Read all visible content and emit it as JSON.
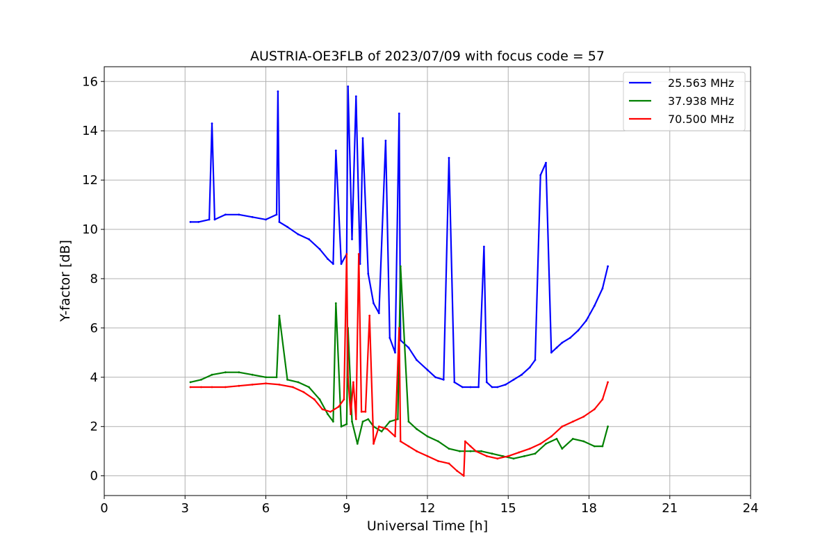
{
  "chart_data": {
    "type": "line",
    "title": "AUSTRIA-OE3FLB of 2023/07/09 with focus code = 57",
    "xlabel": "Universal Time [h]",
    "ylabel": "Y-factor [dB]",
    "xlim": [
      0,
      24
    ],
    "ylim": [
      -0.8,
      16.6
    ],
    "xticks": [
      "0",
      "3",
      "6",
      "9",
      "12",
      "15",
      "18",
      "21",
      "24"
    ],
    "yticks": [
      "0",
      "2",
      "4",
      "6",
      "8",
      "10",
      "12",
      "14",
      "16"
    ],
    "grid": true,
    "legend_position": "top-right",
    "series": [
      {
        "name": "25.563 MHz",
        "color": "#0000ff",
        "x": [
          3.2,
          3.5,
          3.9,
          4.0,
          4.1,
          4.5,
          5.0,
          5.5,
          6.0,
          6.4,
          6.45,
          6.5,
          6.8,
          7.2,
          7.6,
          8.0,
          8.3,
          8.5,
          8.6,
          8.8,
          9.0,
          9.05,
          9.2,
          9.35,
          9.5,
          9.6,
          9.8,
          10.0,
          10.2,
          10.45,
          10.6,
          10.8,
          10.95,
          11.0,
          11.3,
          11.6,
          12.0,
          12.3,
          12.6,
          12.8,
          13.0,
          13.3,
          13.6,
          13.9,
          14.1,
          14.2,
          14.4,
          14.6,
          14.9,
          15.2,
          15.5,
          15.8,
          16.0,
          16.2,
          16.4,
          16.6,
          16.8,
          17.0,
          17.3,
          17.6,
          17.9,
          18.2,
          18.5,
          18.7
        ],
        "values": [
          10.3,
          10.3,
          10.4,
          14.3,
          10.4,
          10.6,
          10.6,
          10.5,
          10.4,
          10.6,
          15.6,
          10.3,
          10.1,
          9.8,
          9.6,
          9.2,
          8.8,
          8.6,
          13.2,
          8.6,
          9.0,
          15.8,
          9.6,
          15.4,
          8.6,
          13.7,
          8.2,
          7.0,
          6.6,
          13.6,
          5.6,
          5.0,
          14.7,
          5.5,
          5.2,
          4.7,
          4.3,
          4.0,
          3.9,
          12.9,
          3.8,
          3.6,
          3.6,
          3.6,
          9.3,
          3.8,
          3.6,
          3.6,
          3.7,
          3.9,
          4.1,
          4.4,
          4.7,
          12.2,
          12.7,
          5.0,
          5.2,
          5.4,
          5.6,
          5.9,
          6.3,
          6.9,
          7.6,
          8.5
        ]
      },
      {
        "name": "37.938 MHz",
        "color": "#008000",
        "x": [
          3.2,
          3.6,
          4.0,
          4.5,
          5.0,
          5.5,
          6.0,
          6.4,
          6.5,
          6.8,
          7.2,
          7.6,
          8.0,
          8.3,
          8.5,
          8.6,
          8.8,
          9.0,
          9.05,
          9.2,
          9.4,
          9.6,
          9.8,
          10.0,
          10.3,
          10.6,
          10.9,
          11.0,
          11.3,
          11.6,
          12.0,
          12.4,
          12.8,
          13.2,
          13.6,
          14.0,
          14.4,
          14.8,
          15.2,
          15.6,
          16.0,
          16.4,
          16.8,
          17.0,
          17.4,
          17.8,
          18.2,
          18.5,
          18.7
        ],
        "values": [
          3.8,
          3.9,
          4.1,
          4.2,
          4.2,
          4.1,
          4.0,
          4.0,
          6.5,
          3.9,
          3.8,
          3.6,
          3.1,
          2.5,
          2.2,
          7.0,
          2.0,
          2.1,
          6.0,
          2.2,
          1.3,
          2.2,
          2.3,
          2.0,
          1.8,
          2.2,
          2.3,
          8.5,
          2.2,
          1.9,
          1.6,
          1.4,
          1.1,
          1.0,
          1.0,
          1.0,
          0.9,
          0.8,
          0.7,
          0.8,
          0.9,
          1.3,
          1.5,
          1.1,
          1.5,
          1.4,
          1.2,
          1.2,
          2.0
        ]
      },
      {
        "name": "70.500 MHz",
        "color": "#ff0000",
        "x": [
          3.2,
          3.6,
          4.0,
          4.5,
          5.0,
          5.5,
          6.0,
          6.5,
          7.0,
          7.4,
          7.8,
          8.1,
          8.4,
          8.7,
          8.9,
          9.0,
          9.05,
          9.15,
          9.25,
          9.35,
          9.45,
          9.55,
          9.7,
          9.85,
          10.0,
          10.2,
          10.5,
          10.8,
          10.95,
          11.0,
          11.3,
          11.6,
          12.0,
          12.4,
          12.8,
          13.1,
          13.35,
          13.4,
          13.6,
          13.8,
          14.2,
          14.6,
          15.0,
          15.4,
          15.8,
          16.2,
          16.6,
          17.0,
          17.4,
          17.8,
          18.2,
          18.5,
          18.7
        ],
        "values": [
          3.6,
          3.6,
          3.6,
          3.6,
          3.65,
          3.7,
          3.75,
          3.7,
          3.6,
          3.4,
          3.1,
          2.7,
          2.6,
          2.8,
          3.1,
          9.0,
          4.0,
          2.5,
          3.8,
          2.3,
          9.0,
          2.6,
          2.6,
          6.5,
          1.3,
          2.0,
          1.9,
          1.6,
          6.0,
          1.4,
          1.2,
          1.0,
          0.8,
          0.6,
          0.5,
          0.2,
          0.0,
          1.4,
          1.2,
          1.0,
          0.8,
          0.7,
          0.8,
          0.95,
          1.1,
          1.3,
          1.6,
          2.0,
          2.2,
          2.4,
          2.7,
          3.1,
          3.8
        ]
      }
    ]
  }
}
